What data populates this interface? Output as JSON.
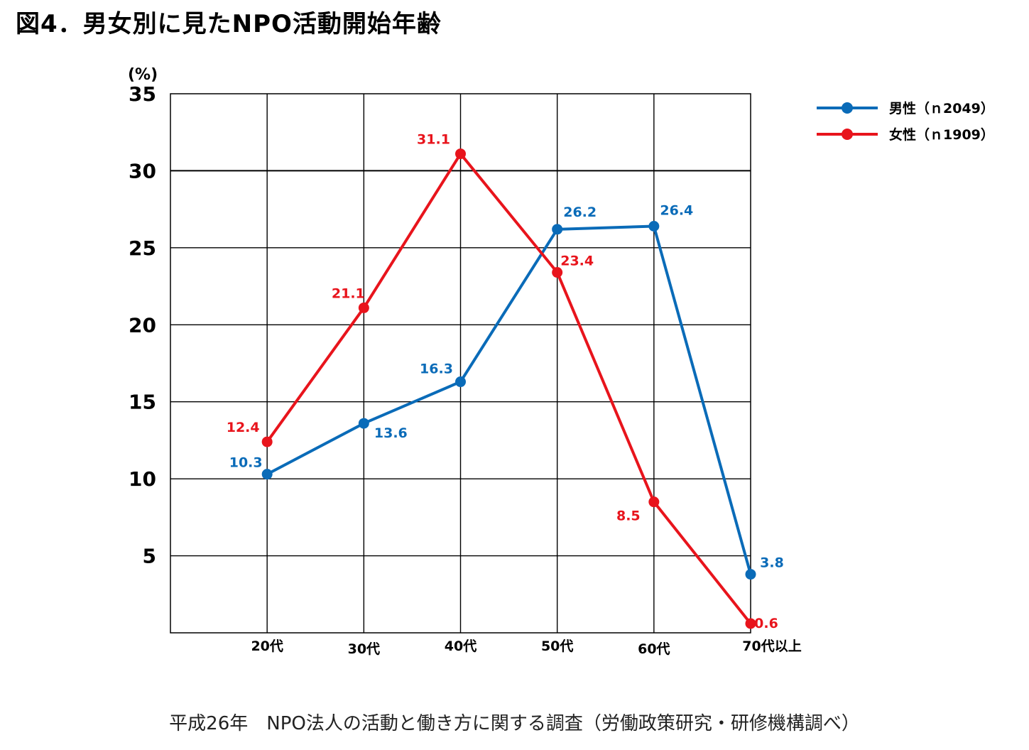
{
  "title": "図4．男女別に見たNPO活動開始年齢",
  "footer": "平成26年　NPO法人の活動と働き方に関する調査（労働政策研究・研修機構調べ）",
  "colors": {
    "male": "#0a6bb8",
    "female": "#e8141c",
    "grid": "#000000"
  },
  "chart_data": {
    "type": "line",
    "ylabel": "(%)",
    "ylim": [
      0,
      35
    ],
    "yticks": [
      5,
      10,
      15,
      20,
      25,
      30,
      35
    ],
    "categories": [
      "20代",
      "30代",
      "40代",
      "50代",
      "60代",
      "70代以上"
    ],
    "grid": true,
    "legend_position": "top-right",
    "series": [
      {
        "name": "男性（ｎ2049）",
        "color": "#0a6bb8",
        "values": [
          10.3,
          13.6,
          16.3,
          26.2,
          26.4,
          3.8
        ]
      },
      {
        "name": "女性（ｎ1909）",
        "color": "#e8141c",
        "values": [
          12.4,
          21.1,
          31.1,
          23.4,
          8.5,
          0.6
        ]
      }
    ]
  }
}
